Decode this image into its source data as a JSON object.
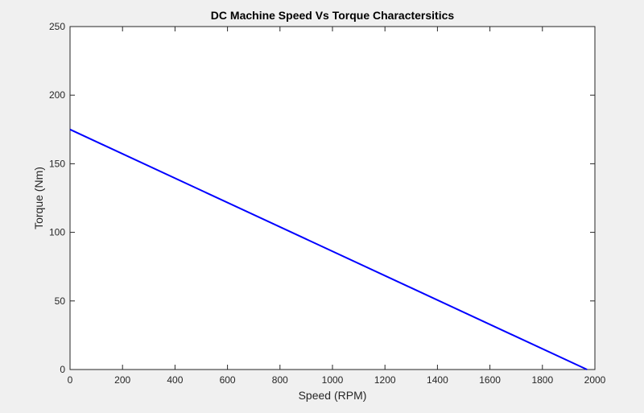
{
  "chart_data": {
    "type": "line",
    "title": "DC Machine Speed Vs Torque Charactersitics",
    "xlabel": "Speed (RPM)",
    "ylabel": "Torque (Nm)",
    "xlim": [
      0,
      2000
    ],
    "ylim": [
      0,
      250
    ],
    "xticks": [
      0,
      200,
      400,
      600,
      800,
      1000,
      1200,
      1400,
      1600,
      1800,
      2000
    ],
    "yticks": [
      0,
      50,
      100,
      150,
      200,
      250
    ],
    "grid": false,
    "legend": "none",
    "series": [
      {
        "x": [
          0,
          1970
        ],
        "y": [
          175,
          0
        ],
        "color": "#0000ff"
      }
    ]
  },
  "colors": {
    "figure_background": "#f0f0f0",
    "axes_background": "#ffffff",
    "axis_color": "#262626",
    "line_color": "#0000ff"
  }
}
